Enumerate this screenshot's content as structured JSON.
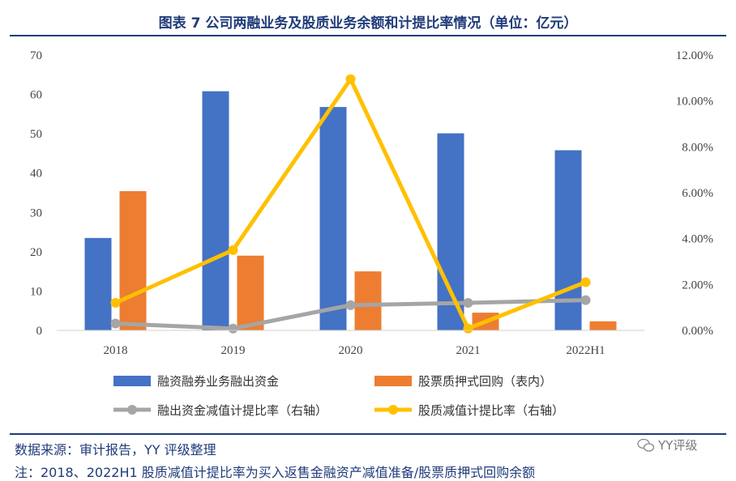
{
  "title": "图表 7 公司两融业务及股质业务余额和计提比率情况（单位：亿元）",
  "source": "数据来源：审计报告，YY 评级整理",
  "note": "注：2018、2022H1 股质减值计提比率为买入返售金融资产减值准备/股票质押式回购余额",
  "brand": "YY评级",
  "colors": {
    "blue": "#4472c4",
    "orange": "#ed7d31",
    "gray": "#a5a5a5",
    "yellow": "#ffc000",
    "navy": "#1f3b7a"
  },
  "chart_data": {
    "type": "bar",
    "categories": [
      "2018",
      "2019",
      "2020",
      "2021",
      "2022H1"
    ],
    "left_axis": {
      "ylim": [
        0,
        70
      ],
      "ticks": [
        "0",
        "10",
        "20",
        "30",
        "40",
        "50",
        "60",
        "70"
      ]
    },
    "right_axis": {
      "ylim": [
        0,
        12
      ],
      "ticks": [
        "0.00%",
        "2.00%",
        "4.00%",
        "6.00%",
        "8.00%",
        "10.00%",
        "12.00%"
      ]
    },
    "series": [
      {
        "name": "融资融券业务融出资金",
        "type": "bar",
        "axis": "left",
        "color": "#4472c4",
        "values": [
          23.5,
          60.8,
          56.8,
          50.1,
          45.8
        ]
      },
      {
        "name": "股票质押式回购（表内）",
        "type": "bar",
        "axis": "left",
        "color": "#ed7d31",
        "values": [
          35.4,
          19.0,
          15.0,
          4.5,
          2.3
        ]
      },
      {
        "name": "融出资金减值计提比率（右轴）",
        "type": "line",
        "axis": "right",
        "color": "#a5a5a5",
        "values": [
          0.3,
          0.08,
          1.1,
          1.2,
          1.32
        ]
      },
      {
        "name": "股质减值计提比率（右轴）",
        "type": "line",
        "axis": "right",
        "color": "#ffc000",
        "values": [
          1.2,
          3.5,
          10.95,
          0.08,
          2.1
        ]
      }
    ],
    "grid": false,
    "legend_position": "bottom"
  }
}
